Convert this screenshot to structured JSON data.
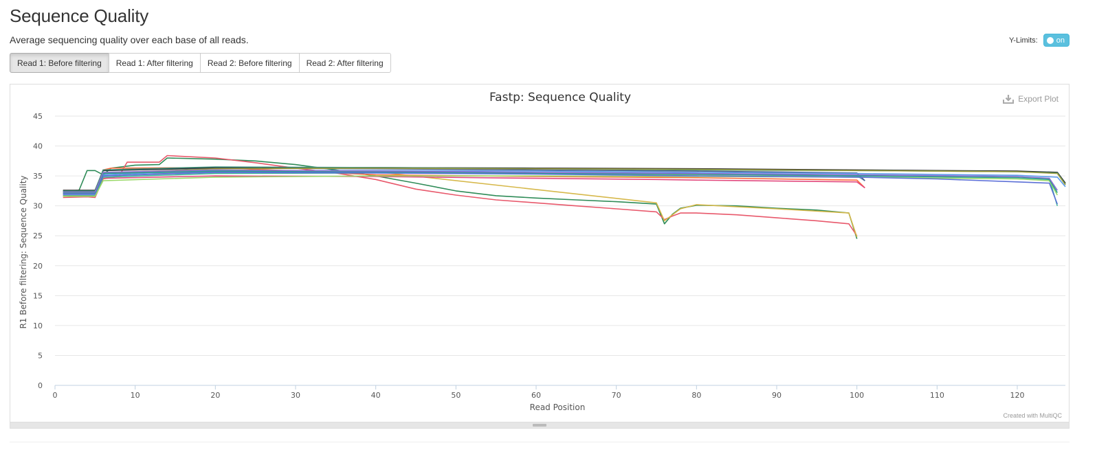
{
  "section": {
    "title": "Sequence Quality",
    "description": "Average sequencing quality over each base of all reads."
  },
  "ylimits": {
    "label": "Y-Limits:",
    "toggle_label": "on",
    "state": "on"
  },
  "tabs": [
    {
      "label": "Read 1: Before filtering",
      "active": true
    },
    {
      "label": "Read 1: After filtering",
      "active": false
    },
    {
      "label": "Read 2: Before filtering",
      "active": false
    },
    {
      "label": "Read 2: After filtering",
      "active": false
    }
  ],
  "export": {
    "label": "Export Plot",
    "icon": "download-icon"
  },
  "credit": "Created with MultiQC",
  "chart_data": {
    "type": "line",
    "title": "Fastp: Sequence Quality",
    "xlabel": "Read Position",
    "ylabel": "R1 Before filtering: Sequence Quality",
    "xlim": [
      0,
      126
    ],
    "ylim": [
      0,
      45
    ],
    "x_ticks": [
      0,
      10,
      20,
      30,
      40,
      50,
      60,
      70,
      80,
      90,
      100,
      110,
      120
    ],
    "y_ticks": [
      0,
      5,
      10,
      15,
      20,
      25,
      30,
      35,
      40,
      45
    ],
    "grid": true,
    "legend": "none",
    "series": [
      {
        "color": "#2e8b57",
        "points": [
          [
            1,
            32.5
          ],
          [
            3,
            32.6
          ],
          [
            4,
            35.9
          ],
          [
            5,
            35.9
          ],
          [
            6,
            35.2
          ],
          [
            7,
            36.3
          ],
          [
            10,
            36.8
          ],
          [
            13,
            36.9
          ],
          [
            14,
            38.0
          ],
          [
            20,
            37.8
          ],
          [
            25,
            37.5
          ],
          [
            30,
            36.9
          ],
          [
            35,
            36.0
          ],
          [
            40,
            35.0
          ],
          [
            45,
            33.8
          ],
          [
            50,
            32.5
          ],
          [
            55,
            31.7
          ],
          [
            60,
            31.3
          ],
          [
            65,
            31.0
          ],
          [
            70,
            30.7
          ],
          [
            75,
            30.3
          ],
          [
            76,
            27.0
          ],
          [
            77,
            28.6
          ],
          [
            78,
            29.6
          ],
          [
            80,
            30.1
          ],
          [
            85,
            30.0
          ],
          [
            90,
            29.6
          ],
          [
            95,
            29.3
          ],
          [
            99,
            28.8
          ],
          [
            100,
            24.5
          ]
        ]
      },
      {
        "color": "#e8586b",
        "points": [
          [
            1,
            31.4
          ],
          [
            4,
            31.5
          ],
          [
            5,
            31.4
          ],
          [
            6,
            34.5
          ],
          [
            8,
            35.0
          ],
          [
            9,
            37.3
          ],
          [
            13,
            37.3
          ],
          [
            14,
            38.4
          ],
          [
            20,
            38.0
          ],
          [
            25,
            37.2
          ],
          [
            30,
            36.3
          ],
          [
            35,
            35.5
          ],
          [
            40,
            34.4
          ],
          [
            45,
            32.8
          ],
          [
            50,
            31.8
          ],
          [
            55,
            31.0
          ],
          [
            60,
            30.5
          ],
          [
            65,
            30.0
          ],
          [
            70,
            29.5
          ],
          [
            75,
            29.0
          ],
          [
            76,
            27.7
          ],
          [
            77,
            28.3
          ],
          [
            78,
            28.8
          ],
          [
            80,
            28.8
          ],
          [
            85,
            28.5
          ],
          [
            90,
            28.0
          ],
          [
            95,
            27.5
          ],
          [
            99,
            27.0
          ],
          [
            100,
            25.0
          ]
        ]
      },
      {
        "color": "#d6b84a",
        "points": [
          [
            1,
            32.0
          ],
          [
            5,
            32.0
          ],
          [
            6,
            34.5
          ],
          [
            10,
            35.5
          ],
          [
            40,
            35.7
          ],
          [
            75,
            30.5
          ],
          [
            76,
            27.5
          ],
          [
            78,
            29.5
          ],
          [
            80,
            30.2
          ],
          [
            90,
            29.5
          ],
          [
            99,
            28.8
          ],
          [
            100,
            24.8
          ]
        ]
      },
      {
        "color": "#ff6b3d",
        "points": [
          [
            1,
            31.6
          ],
          [
            5,
            31.6
          ],
          [
            6,
            36.0
          ],
          [
            7,
            36.3
          ],
          [
            20,
            36.4
          ],
          [
            40,
            35.2
          ],
          [
            60,
            34.9
          ],
          [
            80,
            34.7
          ],
          [
            100,
            34.3
          ],
          [
            101,
            33.0
          ]
        ]
      },
      {
        "color": "#e2497e",
        "points": [
          [
            1,
            31.8
          ],
          [
            5,
            31.8
          ],
          [
            6,
            34.6
          ],
          [
            20,
            35.0
          ],
          [
            40,
            34.9
          ],
          [
            60,
            34.6
          ],
          [
            75,
            34.4
          ],
          [
            80,
            34.3
          ],
          [
            100,
            34.0
          ],
          [
            101,
            33.0
          ]
        ]
      },
      {
        "color": "#7cc07c",
        "points": [
          [
            1,
            32.1
          ],
          [
            5,
            32.1
          ],
          [
            6,
            35.5
          ],
          [
            20,
            35.8
          ],
          [
            40,
            35.6
          ],
          [
            60,
            35.4
          ],
          [
            80,
            35.2
          ],
          [
            100,
            35.0
          ],
          [
            101,
            34.2
          ]
        ]
      },
      {
        "color": "#6a7fd9",
        "points": [
          [
            1,
            32.2
          ],
          [
            5,
            32.2
          ],
          [
            6,
            35.0
          ],
          [
            20,
            35.7
          ],
          [
            40,
            35.6
          ],
          [
            60,
            35.5
          ],
          [
            80,
            35.4
          ],
          [
            100,
            35.1
          ],
          [
            101,
            34.2
          ]
        ]
      },
      {
        "color": "#4a5d8a",
        "points": [
          [
            1,
            32.4
          ],
          [
            5,
            32.4
          ],
          [
            6,
            35.9
          ],
          [
            20,
            36.3
          ],
          [
            40,
            36.2
          ],
          [
            60,
            36.0
          ],
          [
            80,
            35.8
          ],
          [
            100,
            35.5
          ],
          [
            101,
            34.2
          ]
        ]
      },
      {
        "color": "#222222",
        "points": [
          [
            1,
            32.6
          ],
          [
            5,
            32.6
          ],
          [
            6,
            35.9
          ],
          [
            20,
            36.4
          ],
          [
            40,
            36.4
          ],
          [
            60,
            36.3
          ],
          [
            80,
            36.2
          ],
          [
            100,
            36.0
          ],
          [
            110,
            35.9
          ],
          [
            120,
            35.8
          ],
          [
            125,
            35.6
          ],
          [
            126,
            33.8
          ]
        ]
      },
      {
        "color": "#3d8f7a",
        "points": [
          [
            1,
            32.5
          ],
          [
            5,
            32.5
          ],
          [
            6,
            36.0
          ],
          [
            20,
            36.5
          ],
          [
            40,
            36.4
          ],
          [
            60,
            36.2
          ],
          [
            80,
            36.0
          ],
          [
            100,
            35.9
          ],
          [
            110,
            35.8
          ],
          [
            120,
            35.7
          ],
          [
            125,
            35.5
          ],
          [
            126,
            33.6
          ]
        ]
      },
      {
        "color": "#a0a040",
        "points": [
          [
            1,
            32.0
          ],
          [
            5,
            32.0
          ],
          [
            6,
            35.5
          ],
          [
            20,
            36.2
          ],
          [
            40,
            36.3
          ],
          [
            60,
            36.2
          ],
          [
            80,
            36.1
          ],
          [
            100,
            35.9
          ],
          [
            120,
            35.7
          ],
          [
            125,
            35.4
          ],
          [
            126,
            33.5
          ]
        ]
      },
      {
        "color": "#5d9cec",
        "points": [
          [
            1,
            31.9
          ],
          [
            5,
            31.9
          ],
          [
            6,
            35.2
          ],
          [
            20,
            35.9
          ],
          [
            40,
            35.9
          ],
          [
            60,
            35.8
          ],
          [
            80,
            35.6
          ],
          [
            100,
            35.4
          ],
          [
            120,
            35.1
          ],
          [
            125,
            34.8
          ],
          [
            126,
            33.2
          ]
        ]
      },
      {
        "color": "#3fb89a",
        "points": [
          [
            1,
            31.7
          ],
          [
            5,
            31.7
          ],
          [
            6,
            34.8
          ],
          [
            20,
            35.4
          ],
          [
            40,
            35.5
          ],
          [
            60,
            35.4
          ],
          [
            80,
            35.3
          ],
          [
            100,
            35.1
          ],
          [
            120,
            34.9
          ],
          [
            124,
            34.5
          ],
          [
            125,
            30.0
          ]
        ]
      },
      {
        "color": "#9bd96a",
        "points": [
          [
            1,
            31.6
          ],
          [
            5,
            31.6
          ],
          [
            6,
            34.2
          ],
          [
            20,
            34.8
          ],
          [
            40,
            35.0
          ],
          [
            60,
            35.0
          ],
          [
            80,
            34.9
          ],
          [
            100,
            34.8
          ],
          [
            120,
            34.5
          ],
          [
            124,
            34.2
          ],
          [
            125,
            31.8
          ]
        ]
      },
      {
        "color": "#5b6fd6",
        "points": [
          [
            1,
            32.0
          ],
          [
            5,
            32.0
          ],
          [
            6,
            35.0
          ],
          [
            20,
            35.6
          ],
          [
            40,
            35.5
          ],
          [
            60,
            35.3
          ],
          [
            80,
            35.0
          ],
          [
            100,
            34.8
          ],
          [
            110,
            34.5
          ],
          [
            120,
            34.0
          ],
          [
            124,
            33.8
          ],
          [
            125,
            30.3
          ]
        ]
      },
      {
        "color": "#2a9d8f",
        "points": [
          [
            1,
            32.2
          ],
          [
            5,
            32.2
          ],
          [
            6,
            35.4
          ],
          [
            20,
            35.8
          ],
          [
            40,
            35.7
          ],
          [
            60,
            35.5
          ],
          [
            80,
            35.3
          ],
          [
            100,
            35.0
          ],
          [
            120,
            34.7
          ],
          [
            124,
            34.4
          ],
          [
            125,
            32.2
          ]
        ]
      },
      {
        "color": "#8b6fcf",
        "points": [
          [
            1,
            32.3
          ],
          [
            5,
            32.3
          ],
          [
            6,
            35.6
          ],
          [
            20,
            36.0
          ],
          [
            40,
            35.8
          ],
          [
            60,
            35.6
          ],
          [
            80,
            35.4
          ],
          [
            100,
            35.2
          ],
          [
            120,
            34.9
          ],
          [
            124,
            34.6
          ],
          [
            125,
            32.6
          ]
        ]
      }
    ]
  }
}
